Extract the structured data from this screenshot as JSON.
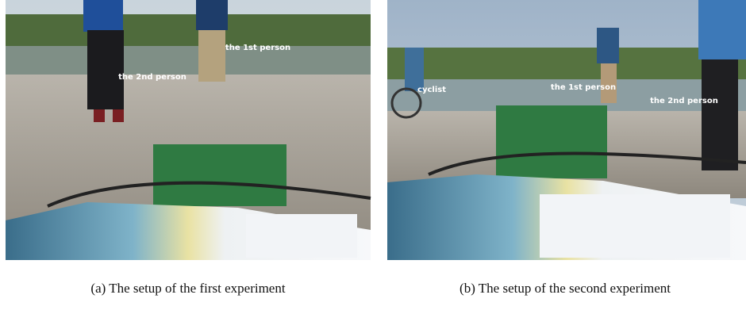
{
  "figure": {
    "panels": [
      {
        "labels": [
          "the 1st person",
          "the 2nd person"
        ],
        "caption": "(a) The setup of the first experiment"
      },
      {
        "labels": [
          "cyclist",
          "the 1st person",
          "the 2nd person"
        ],
        "caption": "(b) The setup of the second experiment"
      }
    ]
  }
}
